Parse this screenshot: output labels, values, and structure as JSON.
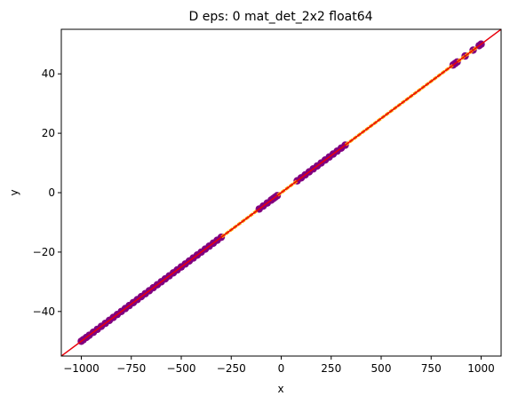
{
  "chart_data": {
    "type": "scatter",
    "title": "D eps: 0 mat_det_2x2 float64",
    "xlabel": "x",
    "ylabel": "y",
    "xlim": [
      -1100,
      1100
    ],
    "ylim": [
      -55,
      55
    ],
    "xticks": [
      -1000,
      -750,
      -500,
      -250,
      0,
      250,
      500,
      750,
      1000
    ],
    "xtick_labels": [
      "−1000",
      "−750",
      "−500",
      "−250",
      "0",
      "250",
      "500",
      "750",
      "1000"
    ],
    "yticks": [
      -40,
      -20,
      0,
      20,
      40
    ],
    "ytick_labels": [
      "−40",
      "−20",
      "0",
      "20",
      "40"
    ],
    "grid": false,
    "series": [
      {
        "color": "#800080",
        "style": "dots",
        "x": [
          -1000,
          -990,
          -975,
          -960,
          -940,
          -920,
          -900,
          -880,
          -860,
          -840,
          -820,
          -800,
          -780,
          -760,
          -740,
          -720,
          -700,
          -680,
          -660,
          -640,
          -620,
          -600,
          -580,
          -560,
          -540,
          -520,
          -500,
          -480,
          -460,
          -440,
          -420,
          -400,
          -380,
          -360,
          -340,
          -320,
          -300,
          -110,
          -90,
          -70,
          -50,
          -40,
          -30,
          -20,
          80,
          100,
          120,
          140,
          160,
          180,
          200,
          220,
          240,
          260,
          280,
          300,
          320,
          860,
          870,
          880,
          920,
          960,
          990,
          1000
        ],
        "y": [
          -50,
          -49.5,
          -48.75,
          -48,
          -47,
          -46,
          -45,
          -44,
          -43,
          -42,
          -41,
          -40,
          -39,
          -38,
          -37,
          -36,
          -35,
          -34,
          -33,
          -32,
          -31,
          -30,
          -29,
          -28,
          -27,
          -26,
          -25,
          -24,
          -23,
          -22,
          -21,
          -20,
          -19,
          -18,
          -17,
          -16,
          -15,
          -5.5,
          -4.5,
          -3.5,
          -2.5,
          -2,
          -1.5,
          -1,
          4,
          5,
          6,
          7,
          8,
          9,
          10,
          11,
          12,
          13,
          14,
          15,
          16,
          43,
          43.5,
          44,
          46,
          48,
          49.5,
          50
        ]
      },
      {
        "color": "#ffa500",
        "style": "dashes",
        "x": [
          -290,
          -270,
          -250,
          -230,
          -210,
          -190,
          -170,
          -150,
          -130,
          -10,
          10,
          30,
          50,
          70,
          330,
          350,
          370,
          390,
          410,
          430,
          450,
          470,
          490,
          510,
          530,
          550,
          570,
          590,
          610,
          630,
          650,
          670,
          690,
          710,
          730,
          750,
          770,
          790,
          810,
          830,
          850,
          890,
          910,
          930,
          950,
          970
        ],
        "y": [
          -14.5,
          -13.5,
          -12.5,
          -11.5,
          -10.5,
          -9.5,
          -8.5,
          -7.5,
          -6.5,
          -0.5,
          0.5,
          1.5,
          2.5,
          3.5,
          16.5,
          17.5,
          18.5,
          19.5,
          20.5,
          21.5,
          22.5,
          23.5,
          24.5,
          25.5,
          26.5,
          27.5,
          28.5,
          29.5,
          30.5,
          31.5,
          32.5,
          33.5,
          34.5,
          35.5,
          36.5,
          37.5,
          38.5,
          39.5,
          40.5,
          41.5,
          42.5,
          44.5,
          45.5,
          46.5,
          47.5,
          48.5
        ]
      }
    ],
    "reference_line": {
      "color": "#e8000b",
      "style": "solid",
      "x": [
        -1100,
        1100
      ],
      "y": [
        -55,
        55
      ]
    }
  }
}
